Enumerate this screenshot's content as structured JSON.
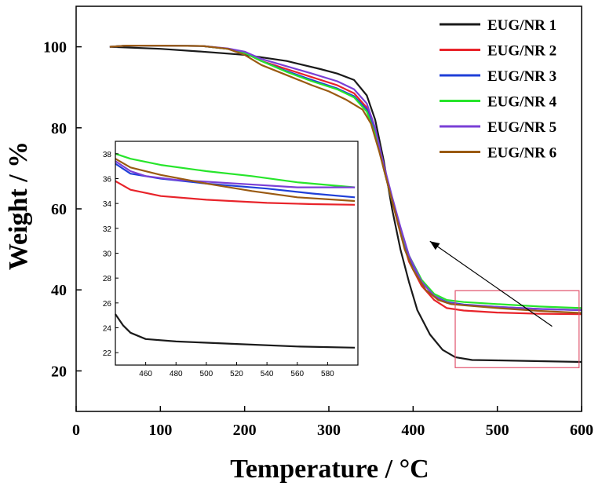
{
  "chart_data": {
    "type": "line",
    "xlabel": "Temperature / °C",
    "ylabel": "Weight / %",
    "xlim": [
      0,
      600
    ],
    "ylim": [
      10,
      110
    ],
    "xticks": [
      0,
      100,
      200,
      300,
      400,
      500,
      600
    ],
    "yticks": [
      20,
      40,
      60,
      80,
      100
    ],
    "legend_position": "top-right",
    "series": [
      {
        "name": "EUG/NR 1",
        "color": "#1a1a1a",
        "points": [
          [
            40,
            100
          ],
          [
            100,
            99.5
          ],
          [
            150,
            98.8
          ],
          [
            200,
            98
          ],
          [
            250,
            96.5
          ],
          [
            290,
            94.5
          ],
          [
            310,
            93.4
          ],
          [
            330,
            91.8
          ],
          [
            345,
            88
          ],
          [
            355,
            82
          ],
          [
            365,
            72
          ],
          [
            375,
            60
          ],
          [
            385,
            50
          ],
          [
            395,
            42
          ],
          [
            405,
            35
          ],
          [
            420,
            29
          ],
          [
            435,
            25.2
          ],
          [
            450,
            23.4
          ],
          [
            470,
            22.7
          ],
          [
            500,
            22.6
          ],
          [
            550,
            22.4
          ],
          [
            600,
            22.2
          ]
        ],
        "inset": [
          [
            440,
            25.1
          ],
          [
            445,
            24.2
          ],
          [
            450,
            23.6
          ],
          [
            460,
            23.1
          ],
          [
            480,
            22.9
          ],
          [
            520,
            22.7
          ],
          [
            560,
            22.5
          ],
          [
            598,
            22.4
          ]
        ]
      },
      {
        "name": "EUG/NR 2",
        "color": "#e8232a",
        "points": [
          [
            40,
            100
          ],
          [
            60,
            100.3
          ],
          [
            100,
            100.3
          ],
          [
            150,
            100.2
          ],
          [
            180,
            99.5
          ],
          [
            200,
            98.5
          ],
          [
            220,
            96.5
          ],
          [
            250,
            94.5
          ],
          [
            280,
            92.5
          ],
          [
            310,
            90.5
          ],
          [
            330,
            88.5
          ],
          [
            345,
            85
          ],
          [
            355,
            79
          ],
          [
            365,
            70
          ],
          [
            375,
            62
          ],
          [
            385,
            54
          ],
          [
            395,
            47
          ],
          [
            410,
            41
          ],
          [
            425,
            37.5
          ],
          [
            440,
            35.5
          ],
          [
            460,
            34.9
          ],
          [
            500,
            34.4
          ],
          [
            550,
            34.1
          ],
          [
            600,
            34
          ]
        ],
        "inset": [
          [
            440,
            35.8
          ],
          [
            450,
            35.1
          ],
          [
            470,
            34.6
          ],
          [
            500,
            34.3
          ],
          [
            540,
            34.05
          ],
          [
            570,
            33.95
          ],
          [
            598,
            33.9
          ]
        ]
      },
      {
        "name": "EUG/NR 3",
        "color": "#1f3fd8",
        "points": [
          [
            40,
            100
          ],
          [
            60,
            100.3
          ],
          [
            100,
            100.3
          ],
          [
            150,
            100.2
          ],
          [
            180,
            99.5
          ],
          [
            200,
            98.5
          ],
          [
            220,
            96.5
          ],
          [
            250,
            94
          ],
          [
            280,
            91.8
          ],
          [
            310,
            89.7
          ],
          [
            330,
            87.8
          ],
          [
            345,
            84.5
          ],
          [
            355,
            79
          ],
          [
            365,
            70
          ],
          [
            375,
            62
          ],
          [
            385,
            55
          ],
          [
            395,
            48
          ],
          [
            410,
            42
          ],
          [
            425,
            38.5
          ],
          [
            440,
            37
          ],
          [
            460,
            36.4
          ],
          [
            500,
            35.8
          ],
          [
            550,
            35.3
          ],
          [
            600,
            35
          ]
        ],
        "inset": [
          [
            440,
            37.2
          ],
          [
            450,
            36.4
          ],
          [
            470,
            36
          ],
          [
            500,
            35.6
          ],
          [
            540,
            35.2
          ],
          [
            570,
            34.8
          ],
          [
            598,
            34.5
          ]
        ]
      },
      {
        "name": "EUG/NR 4",
        "color": "#27e52b",
        "points": [
          [
            40,
            100
          ],
          [
            60,
            100.3
          ],
          [
            100,
            100.3
          ],
          [
            150,
            100.2
          ],
          [
            180,
            99.5
          ],
          [
            200,
            98.5
          ],
          [
            220,
            96.5
          ],
          [
            250,
            93.8
          ],
          [
            280,
            91.5
          ],
          [
            310,
            89.5
          ],
          [
            330,
            87.5
          ],
          [
            345,
            84
          ],
          [
            355,
            78.5
          ],
          [
            365,
            70
          ],
          [
            375,
            62
          ],
          [
            385,
            55
          ],
          [
            395,
            48.5
          ],
          [
            410,
            42.5
          ],
          [
            425,
            39
          ],
          [
            440,
            37.5
          ],
          [
            460,
            37
          ],
          [
            500,
            36.5
          ],
          [
            550,
            35.9
          ],
          [
            600,
            35.5
          ]
        ],
        "inset": [
          [
            440,
            38
          ],
          [
            450,
            37.6
          ],
          [
            470,
            37.1
          ],
          [
            500,
            36.6
          ],
          [
            530,
            36.2
          ],
          [
            560,
            35.7
          ],
          [
            598,
            35.3
          ]
        ]
      },
      {
        "name": "EUG/NR 5",
        "color": "#7a3fd6",
        "points": [
          [
            40,
            100
          ],
          [
            60,
            100.3
          ],
          [
            100,
            100.3
          ],
          [
            150,
            100.2
          ],
          [
            180,
            99.6
          ],
          [
            200,
            98.8
          ],
          [
            220,
            97
          ],
          [
            250,
            95.2
          ],
          [
            280,
            93.4
          ],
          [
            310,
            91.5
          ],
          [
            330,
            89.5
          ],
          [
            345,
            86
          ],
          [
            355,
            80
          ],
          [
            365,
            71
          ],
          [
            375,
            63
          ],
          [
            385,
            55.5
          ],
          [
            395,
            48.5
          ],
          [
            410,
            42
          ],
          [
            425,
            38.5
          ],
          [
            440,
            36.8
          ],
          [
            460,
            36.3
          ],
          [
            500,
            35.8
          ],
          [
            550,
            35.3
          ],
          [
            600,
            35
          ]
        ],
        "inset": [
          [
            440,
            37.4
          ],
          [
            450,
            36.6
          ],
          [
            460,
            36.2
          ],
          [
            480,
            35.9
          ],
          [
            520,
            35.6
          ],
          [
            560,
            35.3
          ],
          [
            598,
            35.3
          ]
        ]
      },
      {
        "name": "EUG/NR 6",
        "color": "#9a5a12",
        "points": [
          [
            40,
            100
          ],
          [
            60,
            100.3
          ],
          [
            100,
            100.3
          ],
          [
            150,
            100.2
          ],
          [
            180,
            99.5
          ],
          [
            200,
            98
          ],
          [
            220,
            95.5
          ],
          [
            250,
            93
          ],
          [
            280,
            90.5
          ],
          [
            300,
            89
          ],
          [
            320,
            87
          ],
          [
            340,
            84.5
          ],
          [
            350,
            81
          ],
          [
            360,
            74
          ],
          [
            370,
            66
          ],
          [
            380,
            58
          ],
          [
            390,
            50
          ],
          [
            400,
            45
          ],
          [
            415,
            40
          ],
          [
            430,
            37.5
          ],
          [
            445,
            36.5
          ],
          [
            460,
            36.2
          ],
          [
            500,
            35.5
          ],
          [
            550,
            34.8
          ],
          [
            600,
            34.3
          ]
        ],
        "inset": [
          [
            440,
            37.6
          ],
          [
            450,
            36.9
          ],
          [
            470,
            36.3
          ],
          [
            500,
            35.6
          ],
          [
            530,
            35
          ],
          [
            560,
            34.5
          ],
          [
            598,
            34.2
          ]
        ]
      }
    ],
    "inset": {
      "xlim": [
        440,
        600
      ],
      "ylim": [
        21,
        39
      ],
      "xticks": [
        460,
        480,
        500,
        520,
        540,
        560,
        580
      ],
      "yticks": [
        22,
        24,
        26,
        28,
        30,
        32,
        34,
        36,
        38
      ],
      "zoom_box": {
        "xmin": 450,
        "xmax": 597,
        "ymin": 20.8,
        "ymax": 39.8
      },
      "arrow": {
        "from": [
          565,
          31
        ],
        "to": [
          420,
          52
        ]
      }
    }
  }
}
